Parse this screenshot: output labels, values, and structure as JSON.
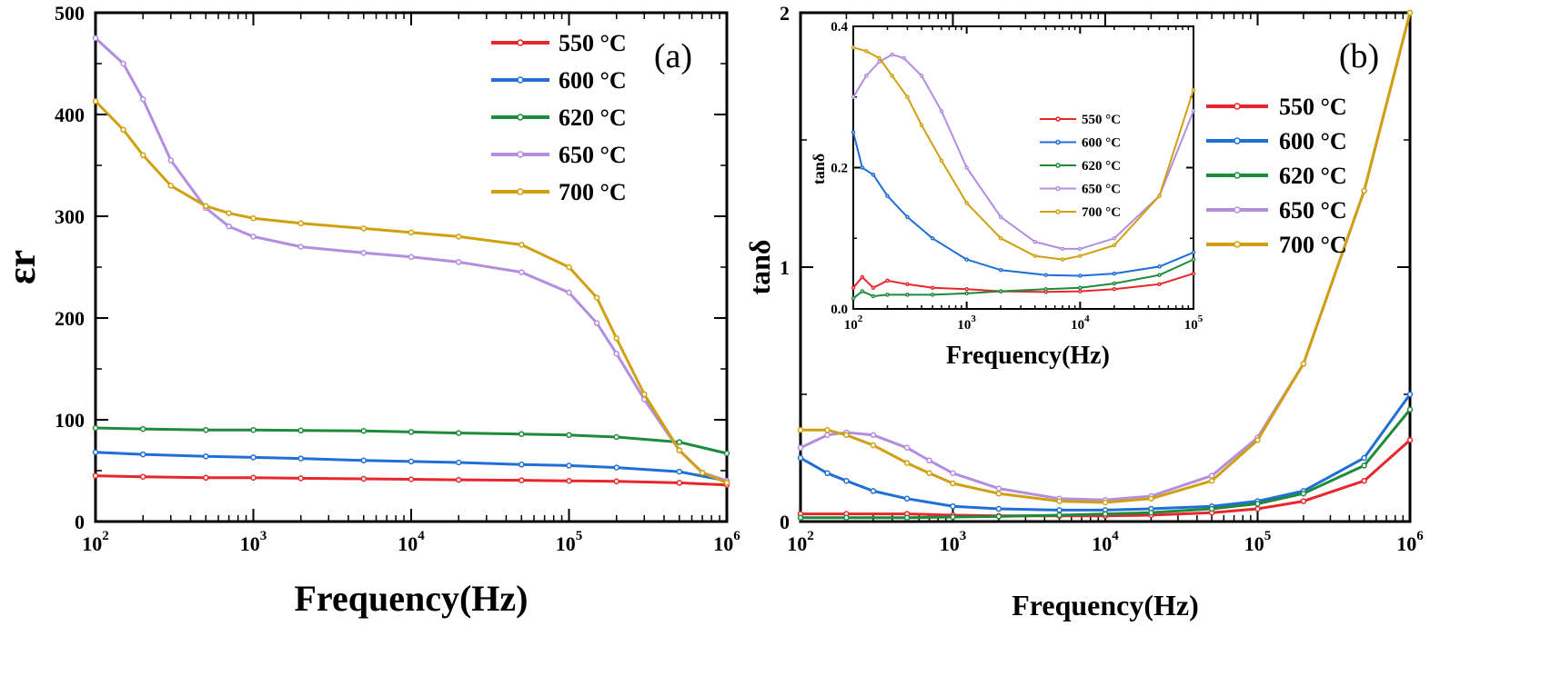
{
  "chart_data": [
    {
      "panel": "(a)",
      "type": "line",
      "xlabel": "Frequency(Hz)",
      "ylabel": "εr",
      "xscale": "log",
      "xlim": [
        100,
        1000000
      ],
      "ylim": [
        0,
        500
      ],
      "x_ticks": [
        100,
        1000,
        10000,
        100000,
        1000000
      ],
      "x_tick_labels": [
        [
          "10",
          "2"
        ],
        [
          "10",
          "3"
        ],
        [
          "10",
          "4"
        ],
        [
          "10",
          "5"
        ],
        [
          "10",
          "6"
        ]
      ],
      "y_ticks": [
        0,
        100,
        200,
        300,
        400,
        500
      ],
      "y_tick_labels": [
        "0",
        "100",
        "200",
        "300",
        "400",
        "500"
      ],
      "legend": "top-right",
      "grid": false,
      "series": [
        {
          "name": "550 °C",
          "color": "#e8262b",
          "x": [
            100,
            200,
            500,
            1000,
            2000,
            5000,
            10000,
            20000,
            50000,
            100000,
            200000,
            500000,
            1000000
          ],
          "values": [
            45,
            44,
            43,
            43,
            42.5,
            42,
            41.5,
            41,
            40.5,
            40,
            39.5,
            38,
            36
          ]
        },
        {
          "name": "600 °C",
          "color": "#1f6fd6",
          "x": [
            100,
            200,
            500,
            1000,
            2000,
            5000,
            10000,
            20000,
            50000,
            100000,
            200000,
            500000,
            1000000
          ],
          "values": [
            68,
            66,
            64,
            63,
            62,
            60,
            59,
            58,
            56,
            55,
            53,
            49,
            40
          ]
        },
        {
          "name": "620 °C",
          "color": "#1e8a3c",
          "x": [
            100,
            200,
            500,
            1000,
            2000,
            5000,
            10000,
            20000,
            50000,
            100000,
            200000,
            500000,
            1000000
          ],
          "values": [
            92,
            91,
            90,
            90,
            89.5,
            89,
            88,
            87,
            86,
            85,
            83,
            78,
            67
          ]
        },
        {
          "name": "650 °C",
          "color": "#b38de0",
          "x": [
            100,
            150,
            200,
            300,
            500,
            700,
            1000,
            2000,
            5000,
            10000,
            20000,
            50000,
            100000,
            150000,
            200000,
            300000,
            500000,
            700000,
            1000000
          ],
          "values": [
            475,
            450,
            415,
            355,
            308,
            290,
            280,
            270,
            264,
            260,
            255,
            245,
            225,
            195,
            165,
            120,
            70,
            48,
            40
          ]
        },
        {
          "name": "700 °C",
          "color": "#d1a010",
          "x": [
            100,
            150,
            200,
            300,
            500,
            700,
            1000,
            2000,
            5000,
            10000,
            20000,
            50000,
            100000,
            150000,
            200000,
            300000,
            500000,
            700000,
            1000000
          ],
          "values": [
            413,
            385,
            360,
            330,
            310,
            303,
            298,
            293,
            288,
            284,
            280,
            272,
            250,
            220,
            180,
            125,
            70,
            48,
            38
          ]
        }
      ]
    },
    {
      "panel": "(b)",
      "type": "line",
      "xlabel": "Frequency(Hz)",
      "ylabel": "tanδ",
      "xscale": "log",
      "xlim": [
        100,
        1000000
      ],
      "ylim": [
        0,
        2
      ],
      "x_ticks": [
        100,
        1000,
        10000,
        100000,
        1000000
      ],
      "x_tick_labels": [
        [
          "10",
          "2"
        ],
        [
          "10",
          "3"
        ],
        [
          "10",
          "4"
        ],
        [
          "10",
          "5"
        ],
        [
          "10",
          "6"
        ]
      ],
      "y_ticks": [
        0,
        1,
        2
      ],
      "y_tick_labels": [
        "0",
        "1",
        "2"
      ],
      "legend": "right",
      "grid": false,
      "series": [
        {
          "name": "550 °C",
          "color": "#e8262b",
          "x": [
            100,
            200,
            500,
            1000,
            2000,
            5000,
            10000,
            20000,
            50000,
            100000,
            200000,
            500000,
            1000000
          ],
          "values": [
            0.03,
            0.03,
            0.03,
            0.025,
            0.022,
            0.022,
            0.022,
            0.025,
            0.035,
            0.05,
            0.08,
            0.16,
            0.32
          ]
        },
        {
          "name": "600 °C",
          "color": "#1f6fd6",
          "x": [
            100,
            150,
            200,
            300,
            500,
            1000,
            2000,
            5000,
            10000,
            20000,
            50000,
            100000,
            200000,
            500000,
            1000000
          ],
          "values": [
            0.25,
            0.19,
            0.16,
            0.12,
            0.09,
            0.06,
            0.05,
            0.045,
            0.045,
            0.05,
            0.06,
            0.08,
            0.12,
            0.25,
            0.5
          ]
        },
        {
          "name": "620 °C",
          "color": "#1e8a3c",
          "x": [
            100,
            200,
            500,
            1000,
            2000,
            5000,
            10000,
            20000,
            50000,
            100000,
            200000,
            500000,
            1000000
          ],
          "values": [
            0.015,
            0.015,
            0.015,
            0.018,
            0.02,
            0.025,
            0.03,
            0.035,
            0.05,
            0.07,
            0.11,
            0.22,
            0.44
          ]
        },
        {
          "name": "650 °C",
          "color": "#b38de0",
          "x": [
            100,
            150,
            200,
            300,
            500,
            700,
            1000,
            2000,
            5000,
            10000,
            20000,
            50000,
            100000,
            200000,
            500000,
            1000000
          ],
          "values": [
            0.29,
            0.34,
            0.35,
            0.34,
            0.29,
            0.24,
            0.19,
            0.13,
            0.09,
            0.085,
            0.1,
            0.18,
            0.33,
            0.62,
            1.3,
            2.0
          ]
        },
        {
          "name": "700 °C",
          "color": "#d1a010",
          "x": [
            100,
            150,
            200,
            300,
            500,
            700,
            1000,
            2000,
            5000,
            10000,
            20000,
            50000,
            100000,
            200000,
            500000,
            1000000
          ],
          "values": [
            0.36,
            0.36,
            0.34,
            0.3,
            0.23,
            0.19,
            0.15,
            0.11,
            0.08,
            0.075,
            0.09,
            0.16,
            0.32,
            0.62,
            1.3,
            2.0
          ]
        }
      ],
      "inset": {
        "type": "line",
        "xlabel": "Frequency(Hz)",
        "ylabel": "tanδ",
        "xscale": "log",
        "xlim": [
          100,
          100000
        ],
        "ylim": [
          0,
          0.4
        ],
        "x_ticks": [
          100,
          1000,
          10000,
          100000
        ],
        "x_tick_labels": [
          [
            "10",
            "2"
          ],
          [
            "10",
            "3"
          ],
          [
            "10",
            "4"
          ],
          [
            "10",
            "5"
          ]
        ],
        "y_ticks": [
          0,
          0.2,
          0.4
        ],
        "y_tick_labels": [
          "0.0",
          "0.2",
          "0.4"
        ],
        "legend": "center",
        "series": [
          {
            "name": "550 °C",
            "color": "#e8262b",
            "x": [
              100,
              120,
              150,
              200,
              300,
              500,
              1000,
              2000,
              5000,
              10000,
              20000,
              50000,
              100000
            ],
            "values": [
              0.03,
              0.045,
              0.03,
              0.04,
              0.035,
              0.03,
              0.028,
              0.025,
              0.024,
              0.025,
              0.028,
              0.035,
              0.05
            ]
          },
          {
            "name": "600 °C",
            "color": "#1f6fd6",
            "x": [
              100,
              120,
              150,
              200,
              300,
              500,
              1000,
              2000,
              5000,
              10000,
              20000,
              50000,
              100000
            ],
            "values": [
              0.25,
              0.2,
              0.19,
              0.16,
              0.13,
              0.1,
              0.07,
              0.055,
              0.048,
              0.047,
              0.05,
              0.06,
              0.08
            ]
          },
          {
            "name": "620 °C",
            "color": "#1e8a3c",
            "x": [
              100,
              120,
              150,
              200,
              300,
              500,
              1000,
              2000,
              5000,
              10000,
              20000,
              50000,
              100000
            ],
            "values": [
              0.015,
              0.025,
              0.018,
              0.02,
              0.02,
              0.02,
              0.022,
              0.025,
              0.028,
              0.03,
              0.036,
              0.048,
              0.07
            ]
          },
          {
            "name": "650 °C",
            "color": "#b38de0",
            "x": [
              100,
              130,
              170,
              220,
              280,
              400,
              600,
              1000,
              2000,
              4000,
              7000,
              10000,
              20000,
              50000,
              100000
            ],
            "values": [
              0.3,
              0.33,
              0.35,
              0.36,
              0.355,
              0.33,
              0.28,
              0.2,
              0.13,
              0.095,
              0.085,
              0.085,
              0.1,
              0.16,
              0.28
            ]
          },
          {
            "name": "700 °C",
            "color": "#d1a010",
            "x": [
              100,
              130,
              170,
              220,
              300,
              400,
              600,
              1000,
              2000,
              4000,
              7000,
              10000,
              20000,
              50000,
              100000
            ],
            "values": [
              0.37,
              0.365,
              0.355,
              0.33,
              0.3,
              0.26,
              0.21,
              0.15,
              0.1,
              0.075,
              0.07,
              0.075,
              0.09,
              0.16,
              0.31
            ]
          }
        ]
      }
    }
  ]
}
